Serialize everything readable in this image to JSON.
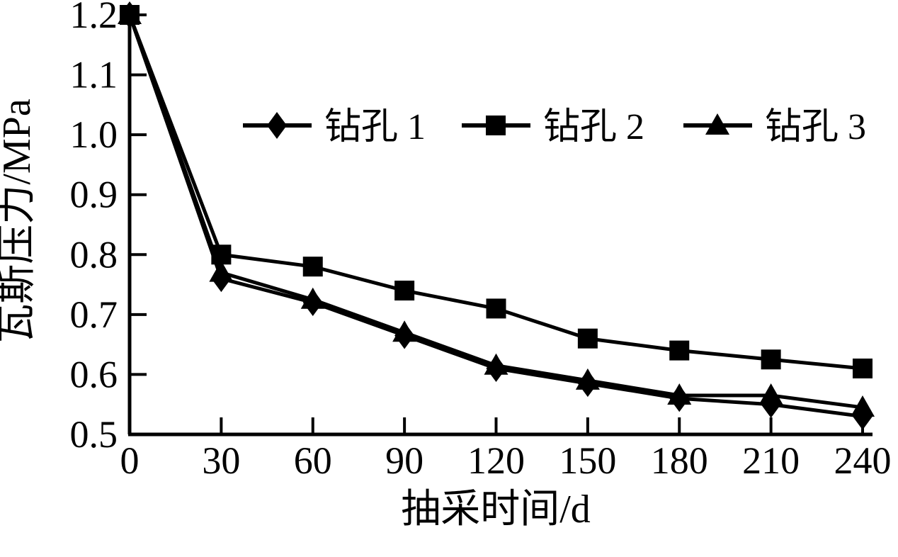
{
  "chart_data": {
    "type": "line",
    "title": "",
    "xlabel": "抽采时间/d",
    "ylabel": "瓦斯压力/MPa",
    "x": [
      0,
      30,
      60,
      90,
      120,
      150,
      180,
      210,
      240
    ],
    "xticks": [
      "0",
      "30",
      "60",
      "90",
      "120",
      "150",
      "180",
      "210",
      "240"
    ],
    "yticks": [
      "1.2",
      "1.1",
      "1.0",
      "0.9",
      "0.8",
      "0.7",
      "0.6",
      "0.5"
    ],
    "ytick_values": [
      1.2,
      1.1,
      1.0,
      0.9,
      0.8,
      0.7,
      0.6,
      0.5
    ],
    "xlim": [
      0,
      240
    ],
    "ylim": [
      0.5,
      1.2
    ],
    "grid": false,
    "background_color": "#ffffff",
    "stroke_color": "#000000",
    "legend_position": "inside-top-horizontal",
    "series": [
      {
        "name": "钻孔 1",
        "marker": "diamond",
        "color": "#000000",
        "values": [
          1.2,
          0.76,
          0.72,
          0.665,
          0.61,
          0.585,
          0.56,
          0.55,
          0.53
        ]
      },
      {
        "name": "钻孔 2",
        "marker": "square",
        "color": "#000000",
        "values": [
          1.2,
          0.8,
          0.78,
          0.74,
          0.71,
          0.66,
          0.64,
          0.625,
          0.61
        ]
      },
      {
        "name": "钻孔 3",
        "marker": "triangle",
        "color": "#000000",
        "values": [
          1.2,
          0.77,
          0.725,
          0.67,
          0.615,
          0.59,
          0.565,
          0.565,
          0.545
        ]
      }
    ]
  }
}
